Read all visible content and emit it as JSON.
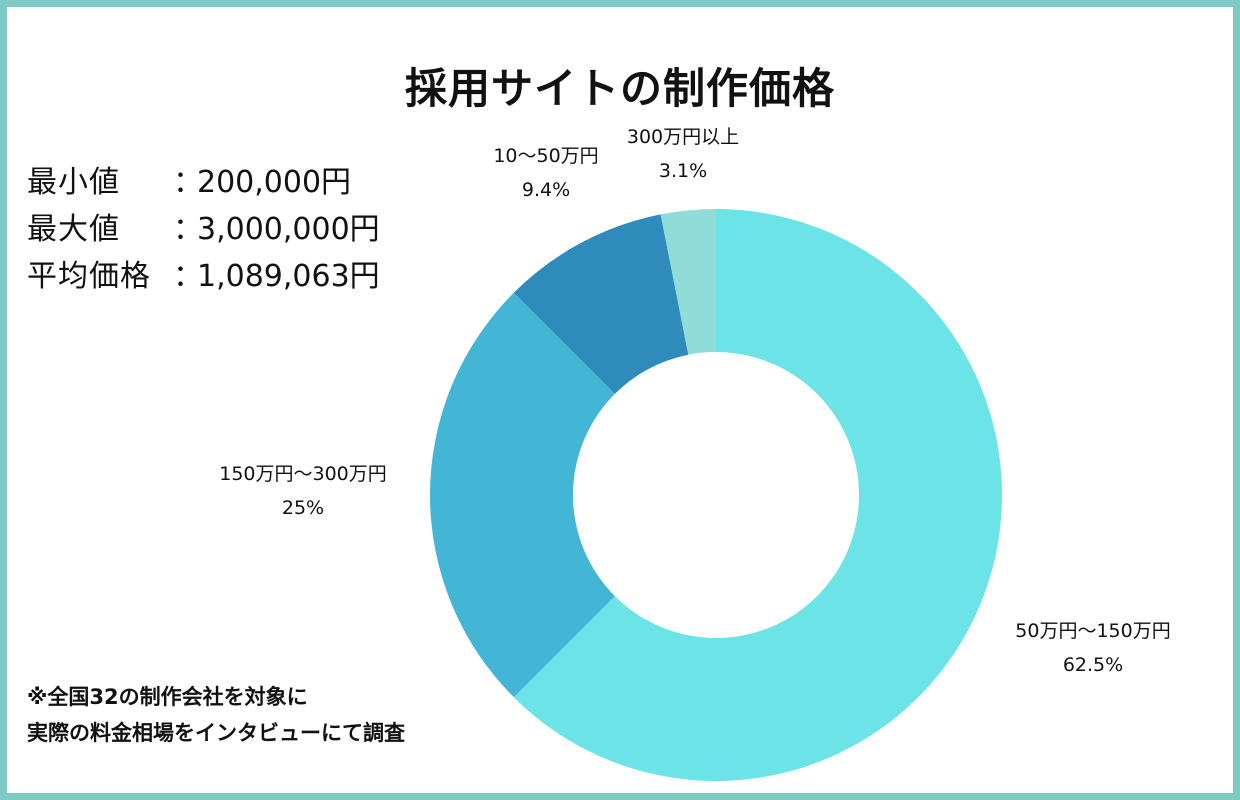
{
  "colors": {
    "frame": "#7ccac3",
    "text": "#111111"
  },
  "stats": [
    {
      "label": "最小値",
      "colon": "：",
      "value": "200,000円"
    },
    {
      "label": "最大値",
      "colon": "：",
      "value": "3,000,000円"
    },
    {
      "label": "平均価格",
      "colon": "：",
      "value": "1,089,063円"
    }
  ],
  "note": {
    "line1": "※全国32の制作会社を対象に",
    "line2": "実際の料金相場をインタビューにて調査"
  },
  "chart_data": {
    "type": "pie",
    "style": "donut",
    "title": "採用サイトの制作価格",
    "slices": [
      {
        "label": "50万円〜150万円",
        "value": 62.5,
        "value_label": "62.5%",
        "color": "#6ce3e6"
      },
      {
        "label": "150万円〜300万円",
        "value": 25,
        "value_label": "25%",
        "color": "#43b6d6"
      },
      {
        "label": "10〜50万円",
        "value": 9.4,
        "value_label": "9.4%",
        "color": "#2e8bbb"
      },
      {
        "label": "300万円以上",
        "value": 3.1,
        "value_label": "3.1%",
        "color": "#8fdcd9"
      }
    ]
  }
}
